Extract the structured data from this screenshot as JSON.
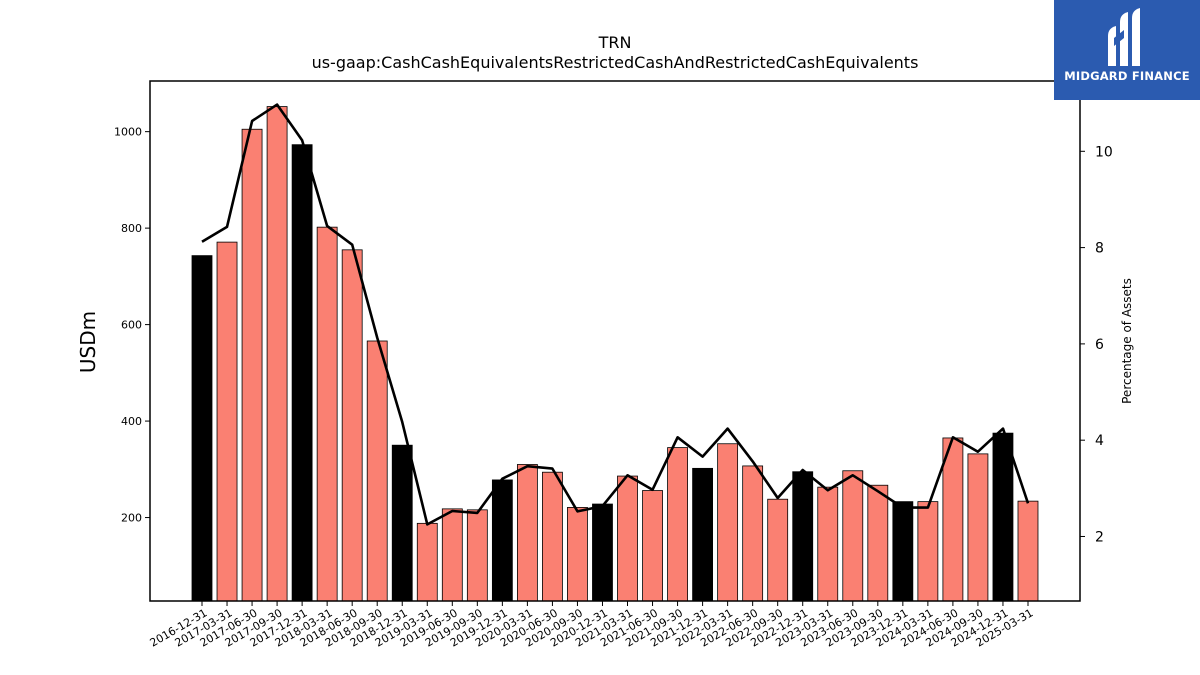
{
  "chart_data": {
    "type": "bar",
    "title": "TRN",
    "subtitle": "us-gaap:CashCashEquivalentsRestrictedCashAndRestrictedCashEquivalents",
    "ylabel": "USDm",
    "y2label": "Percentage of Assets",
    "ylim": [
      27,
      1105
    ],
    "y2lim": [
      0.66,
      11.46
    ],
    "yticks": [
      200,
      400,
      600,
      800,
      1000
    ],
    "y2ticks": [
      2,
      4,
      6,
      8,
      10
    ],
    "grid": false,
    "categories": [
      "2016-12-31",
      "2017-03-31",
      "2017-06-30",
      "2017-09-30",
      "2017-12-31",
      "2018-03-31",
      "2018-06-30",
      "2018-09-30",
      "2018-12-31",
      "2019-03-31",
      "2019-06-30",
      "2019-09-30",
      "2019-12-31",
      "2020-03-31",
      "2020-06-30",
      "2020-09-30",
      "2020-12-31",
      "2021-03-31",
      "2021-06-30",
      "2021-09-30",
      "2021-12-31",
      "2022-03-31",
      "2022-06-30",
      "2022-09-30",
      "2022-12-31",
      "2023-03-31",
      "2023-06-30",
      "2023-09-30",
      "2023-12-31",
      "2024-03-31",
      "2024-06-30",
      "2024-09-30",
      "2024-12-31",
      "2025-03-31"
    ],
    "series": [
      {
        "values": [
          743,
          771,
          1005,
          1052,
          973,
          802,
          755,
          566,
          350,
          188,
          218,
          216,
          278,
          310,
          294,
          221,
          228,
          286,
          256,
          345,
          302,
          353,
          307,
          238,
          295,
          263,
          297,
          267,
          233,
          233,
          365,
          332,
          375,
          234
        ]
      },
      {
        "values": [
          8.12,
          8.43,
          10.63,
          10.97,
          10.23,
          8.45,
          8.06,
          6.13,
          4.38,
          2.25,
          2.53,
          2.49,
          3.2,
          3.46,
          3.41,
          2.52,
          2.63,
          3.27,
          2.97,
          4.06,
          3.66,
          4.24,
          3.56,
          2.8,
          3.38,
          2.96,
          3.27,
          2.94,
          2.6,
          2.6,
          4.06,
          3.76,
          4.24,
          2.69
        ]
      }
    ],
    "bar_colors": {
      "year_end": "#000000",
      "quarter": "#fa8072"
    },
    "line_color": "#000000"
  },
  "logo": {
    "text": "MIDGARD FINANCE",
    "background": "#2b5bb0"
  }
}
